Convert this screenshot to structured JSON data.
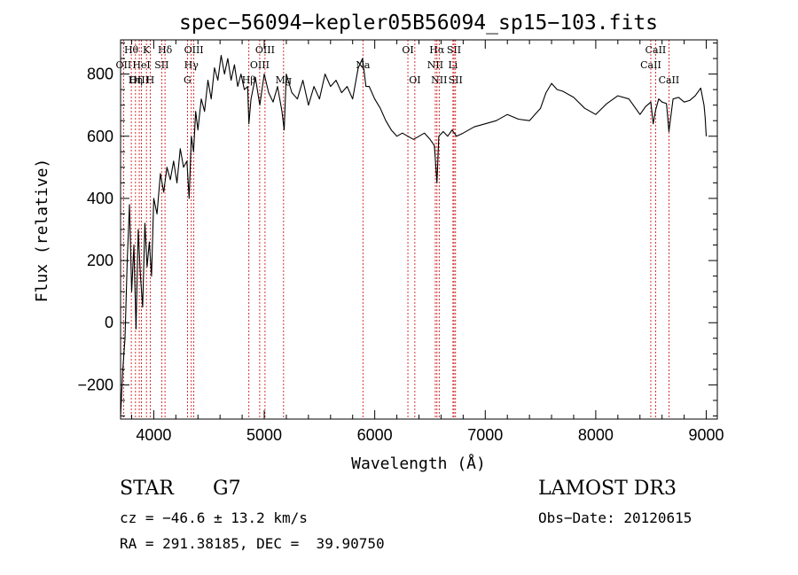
{
  "chart_data": {
    "type": "line",
    "title": "spec−56094−kepler05B56094_sp15−103.fits",
    "xlabel": "Wavelength (Å)",
    "ylabel": "Flux (relative)",
    "xlim": [
      3700,
      9100
    ],
    "ylim": [
      -310,
      910
    ],
    "xticks": [
      4000,
      5000,
      6000,
      7000,
      8000,
      9000
    ],
    "yticks": [
      -200,
      0,
      200,
      400,
      600,
      800
    ],
    "ytick_labels": [
      "−200",
      "0",
      "200",
      "400",
      "600",
      "800"
    ],
    "series": [
      {
        "name": "spectrum",
        "x": [
          3700,
          3720,
          3740,
          3760,
          3780,
          3800,
          3820,
          3840,
          3860,
          3880,
          3900,
          3920,
          3940,
          3960,
          3980,
          4000,
          4030,
          4060,
          4090,
          4120,
          4150,
          4180,
          4210,
          4240,
          4270,
          4300,
          4320,
          4340,
          4360,
          4380,
          4400,
          4430,
          4460,
          4490,
          4520,
          4550,
          4580,
          4610,
          4640,
          4670,
          4700,
          4730,
          4760,
          4790,
          4820,
          4850,
          4861,
          4880,
          4920,
          4960,
          5000,
          5040,
          5080,
          5120,
          5160,
          5180,
          5200,
          5250,
          5300,
          5350,
          5400,
          5450,
          5500,
          5550,
          5600,
          5650,
          5700,
          5750,
          5800,
          5850,
          5890,
          5920,
          5950,
          6000,
          6050,
          6100,
          6150,
          6200,
          6250,
          6300,
          6350,
          6400,
          6450,
          6500,
          6540,
          6563,
          6580,
          6620,
          6660,
          6700,
          6740,
          6800,
          6900,
          7000,
          7100,
          7200,
          7300,
          7400,
          7500,
          7550,
          7600,
          7650,
          7700,
          7800,
          7900,
          8000,
          8100,
          8200,
          8300,
          8400,
          8450,
          8498,
          8520,
          8542,
          8570,
          8600,
          8640,
          8662,
          8700,
          8750,
          8800,
          8850,
          8900,
          8950,
          8980,
          8990,
          9000
        ],
        "values": [
          -300,
          -150,
          -50,
          200,
          380,
          100,
          250,
          -20,
          300,
          150,
          50,
          320,
          180,
          260,
          150,
          400,
          350,
          480,
          420,
          500,
          460,
          520,
          450,
          560,
          500,
          520,
          400,
          600,
          550,
          680,
          620,
          720,
          680,
          780,
          720,
          820,
          780,
          860,
          800,
          850,
          780,
          830,
          760,
          800,
          750,
          760,
          640,
          720,
          790,
          700,
          800,
          740,
          710,
          760,
          680,
          620,
          800,
          740,
          720,
          780,
          700,
          760,
          720,
          800,
          760,
          780,
          740,
          760,
          720,
          820,
          850,
          760,
          760,
          720,
          690,
          650,
          620,
          600,
          610,
          600,
          590,
          600,
          610,
          590,
          570,
          450,
          600,
          615,
          600,
          620,
          600,
          610,
          630,
          640,
          650,
          670,
          655,
          650,
          690,
          740,
          770,
          750,
          745,
          725,
          690,
          670,
          705,
          730,
          720,
          670,
          695,
          710,
          640,
          685,
          720,
          710,
          705,
          615,
          720,
          725,
          710,
          715,
          730,
          755,
          700,
          660,
          600
        ]
      }
    ],
    "spectral_lines": [
      {
        "name": "Hθ",
        "x": 3797,
        "row": 0
      },
      {
        "name": "OII",
        "x": 3727,
        "row": 1
      },
      {
        "name": "OIII",
        "x": 3869,
        "row": 2
      },
      {
        "name": "K",
        "x": 3934,
        "row": 0
      },
      {
        "name": "HeI",
        "x": 3889,
        "row": 1
      },
      {
        "name": "Hη",
        "x": 3835,
        "row": 2
      },
      {
        "name": "Hδ",
        "x": 4102,
        "row": 0
      },
      {
        "name": "SII",
        "x": 4072,
        "row": 1
      },
      {
        "name": "H",
        "x": 3968,
        "row": 2
      },
      {
        "name": "OIII",
        "x": 4363,
        "row": 0
      },
      {
        "name": "Hγ",
        "x": 4340,
        "row": 1
      },
      {
        "name": "G",
        "x": 4305,
        "row": 2
      },
      {
        "name": "OIII",
        "x": 5007,
        "row": 0
      },
      {
        "name": "OIII",
        "x": 4959,
        "row": 1
      },
      {
        "name": "Hβ",
        "x": 4861,
        "row": 2
      },
      {
        "name": "Mg",
        "x": 5175,
        "row": 2
      },
      {
        "name": "Na",
        "x": 5893,
        "row": 1
      },
      {
        "name": "OI",
        "x": 6300,
        "row": 0
      },
      {
        "name": "OI",
        "x": 6363,
        "row": 2
      },
      {
        "name": "Hα",
        "x": 6563,
        "row": 0
      },
      {
        "name": "NII",
        "x": 6548,
        "row": 1
      },
      {
        "name": "NII",
        "x": 6583,
        "row": 2
      },
      {
        "name": "SII",
        "x": 6717,
        "row": 0
      },
      {
        "name": "Li",
        "x": 6708,
        "row": 1
      },
      {
        "name": "SII",
        "x": 6731,
        "row": 2
      },
      {
        "name": "CaII",
        "x": 8542,
        "row": 0
      },
      {
        "name": "CaII",
        "x": 8498,
        "row": 1
      },
      {
        "name": "CaII",
        "x": 8662,
        "row": 2
      }
    ],
    "line_color": "#cc0000",
    "grid": false
  },
  "info": {
    "class": "STAR",
    "subclass": "G7",
    "cz": "cz = −46.6 ± 13.2 km/s",
    "radec": "RA = 291.38185, DEC =  39.90750",
    "survey": "LAMOST DR3",
    "obsdate": "Obs−Date: 20120615"
  }
}
